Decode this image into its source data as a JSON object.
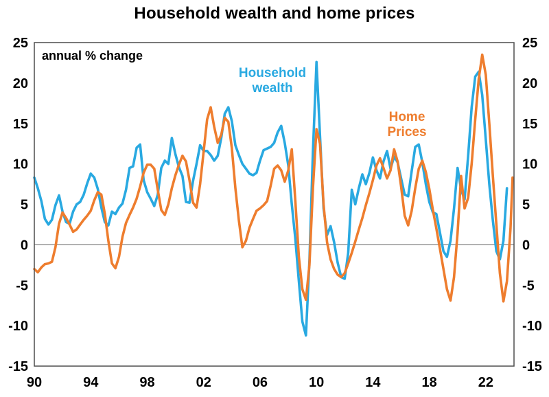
{
  "title": "Household wealth and home prices",
  "annotation": "annual % change",
  "legend": {
    "wealth": {
      "line1": "Household",
      "line2": "wealth"
    },
    "home": {
      "line1": "Home",
      "line2": "Prices"
    }
  },
  "colors": {
    "wealth": "#29A9E1",
    "home": "#EE7D2E",
    "zero_line": "#7F7F7F",
    "frame": "#4D4D4D",
    "text": "#000000",
    "background": "#FFFFFF"
  },
  "chart_data": {
    "type": "line",
    "title": "Household wealth and home prices",
    "subtitle": "annual % change",
    "xlabel": "",
    "ylabel": "annual % change",
    "x_range": [
      1990,
      2024
    ],
    "ylim": [
      -15,
      25
    ],
    "grid": "zero-line-only",
    "legend_position": "inline-annotations",
    "y_ticks": [
      25,
      20,
      15,
      10,
      5,
      0,
      -5,
      -10,
      -15
    ],
    "x_ticks": [
      {
        "label": "90",
        "year": 1990
      },
      {
        "label": "94",
        "year": 1994
      },
      {
        "label": "98",
        "year": 1998
      },
      {
        "label": "02",
        "year": 2002
      },
      {
        "label": "06",
        "year": 2006
      },
      {
        "label": "10",
        "year": 2010
      },
      {
        "label": "14",
        "year": 2014
      },
      {
        "label": "18",
        "year": 2018
      },
      {
        "label": "22",
        "year": 2022
      }
    ],
    "series": [
      {
        "name": "Household wealth",
        "color_key": "wealth",
        "points": [
          [
            1990,
            8.3
          ],
          [
            1990.25,
            7
          ],
          [
            1990.5,
            5.4
          ],
          [
            1990.75,
            3.2
          ],
          [
            1991,
            2.5
          ],
          [
            1991.25,
            3.1
          ],
          [
            1991.5,
            4.9
          ],
          [
            1991.75,
            6.1
          ],
          [
            1992,
            4.1
          ],
          [
            1992.25,
            2.8
          ],
          [
            1992.5,
            2.6
          ],
          [
            1992.75,
            4.1
          ],
          [
            1993,
            5
          ],
          [
            1993.25,
            5.3
          ],
          [
            1993.5,
            6.2
          ],
          [
            1993.75,
            7.6
          ],
          [
            1994,
            8.8
          ],
          [
            1994.25,
            8.3
          ],
          [
            1994.5,
            6.9
          ],
          [
            1994.75,
            4.6
          ],
          [
            1995,
            2.8
          ],
          [
            1995.25,
            2.4
          ],
          [
            1995.5,
            4.1
          ],
          [
            1995.75,
            3.8
          ],
          [
            1996,
            4.6
          ],
          [
            1996.25,
            5.1
          ],
          [
            1996.5,
            6.8
          ],
          [
            1996.75,
            9.5
          ],
          [
            1997,
            9.7
          ],
          [
            1997.25,
            12
          ],
          [
            1997.5,
            12.4
          ],
          [
            1997.75,
            8
          ],
          [
            1998,
            6.5
          ],
          [
            1998.25,
            5.7
          ],
          [
            1998.5,
            4.8
          ],
          [
            1998.75,
            6.2
          ],
          [
            1999,
            9.5
          ],
          [
            1999.25,
            10.4
          ],
          [
            1999.5,
            10
          ],
          [
            1999.75,
            13.2
          ],
          [
            2000,
            11.2
          ],
          [
            2000.25,
            9.6
          ],
          [
            2000.5,
            8.5
          ],
          [
            2000.75,
            5.3
          ],
          [
            2001,
            5.2
          ],
          [
            2001.25,
            7.9
          ],
          [
            2001.5,
            10
          ],
          [
            2001.75,
            12.3
          ],
          [
            2002,
            11.6
          ],
          [
            2002.25,
            11.6
          ],
          [
            2002.5,
            11.1
          ],
          [
            2002.75,
            10.4
          ],
          [
            2003,
            11
          ],
          [
            2003.25,
            13.2
          ],
          [
            2003.5,
            16.2
          ],
          [
            2003.75,
            17
          ],
          [
            2004,
            15.3
          ],
          [
            2004.25,
            12.3
          ],
          [
            2004.5,
            11.1
          ],
          [
            2004.75,
            10
          ],
          [
            2005,
            9.4
          ],
          [
            2005.25,
            8.8
          ],
          [
            2005.5,
            8.6
          ],
          [
            2005.75,
            8.9
          ],
          [
            2006,
            10.4
          ],
          [
            2006.25,
            11.7
          ],
          [
            2006.5,
            11.9
          ],
          [
            2006.75,
            12.1
          ],
          [
            2007,
            12.6
          ],
          [
            2007.25,
            13.9
          ],
          [
            2007.5,
            14.7
          ],
          [
            2007.75,
            12.6
          ],
          [
            2008,
            9.8
          ],
          [
            2008.25,
            5
          ],
          [
            2008.5,
            0.8
          ],
          [
            2008.75,
            -4.5
          ],
          [
            2009,
            -9.5
          ],
          [
            2009.25,
            -11.2
          ],
          [
            2009.5,
            -2
          ],
          [
            2009.75,
            11.5
          ],
          [
            2010,
            22.6
          ],
          [
            2010.25,
            13.5
          ],
          [
            2010.5,
            4.5
          ],
          [
            2010.75,
            1.2
          ],
          [
            2011,
            2.3
          ],
          [
            2011.25,
            0.3
          ],
          [
            2011.5,
            -2.2
          ],
          [
            2011.75,
            -4
          ],
          [
            2012,
            -4.2
          ],
          [
            2012.25,
            -1
          ],
          [
            2012.5,
            6.8
          ],
          [
            2012.75,
            5
          ],
          [
            2013,
            7
          ],
          [
            2013.25,
            8.7
          ],
          [
            2013.5,
            7.5
          ],
          [
            2013.75,
            8.9
          ],
          [
            2014,
            10.8
          ],
          [
            2014.25,
            9.2
          ],
          [
            2014.5,
            8.2
          ],
          [
            2014.75,
            10.3
          ],
          [
            2015,
            11.6
          ],
          [
            2015.25,
            9.4
          ],
          [
            2015.5,
            10.9
          ],
          [
            2015.75,
            10.2
          ],
          [
            2016,
            8.2
          ],
          [
            2016.25,
            6.2
          ],
          [
            2016.5,
            6
          ],
          [
            2016.75,
            9.1
          ],
          [
            2017,
            12.1
          ],
          [
            2017.25,
            12.4
          ],
          [
            2017.5,
            10.2
          ],
          [
            2017.75,
            7.5
          ],
          [
            2018,
            5.3
          ],
          [
            2018.25,
            4
          ],
          [
            2018.5,
            3.8
          ],
          [
            2018.75,
            1.5
          ],
          [
            2019,
            -0.8
          ],
          [
            2019.25,
            -1.5
          ],
          [
            2019.5,
            0.5
          ],
          [
            2019.75,
            4.5
          ],
          [
            2020,
            9.5
          ],
          [
            2020.25,
            6.8
          ],
          [
            2020.5,
            5.6
          ],
          [
            2020.75,
            11
          ],
          [
            2021,
            17
          ],
          [
            2021.25,
            20.8
          ],
          [
            2021.5,
            21.4
          ],
          [
            2021.75,
            18.5
          ],
          [
            2022,
            13
          ],
          [
            2022.25,
            7.5
          ],
          [
            2022.5,
            3
          ],
          [
            2022.75,
            -0.8
          ],
          [
            2023,
            -1.8
          ],
          [
            2023.25,
            0.5
          ],
          [
            2023.5,
            7
          ]
        ]
      },
      {
        "name": "Home Prices",
        "color_key": "home",
        "points": [
          [
            1990,
            -3
          ],
          [
            1990.25,
            -3.4
          ],
          [
            1990.5,
            -2.8
          ],
          [
            1990.75,
            -2.4
          ],
          [
            1991,
            -2.3
          ],
          [
            1991.25,
            -2.1
          ],
          [
            1991.5,
            -0.3
          ],
          [
            1991.75,
            2.6
          ],
          [
            1992,
            4
          ],
          [
            1992.25,
            3.3
          ],
          [
            1992.5,
            2.5
          ],
          [
            1992.75,
            1.6
          ],
          [
            1993,
            1.9
          ],
          [
            1993.25,
            2.5
          ],
          [
            1993.5,
            3.1
          ],
          [
            1993.75,
            3.6
          ],
          [
            1994,
            4.2
          ],
          [
            1994.25,
            5.5
          ],
          [
            1994.5,
            6.5
          ],
          [
            1994.75,
            6.2
          ],
          [
            1995,
            3.8
          ],
          [
            1995.25,
            0.5
          ],
          [
            1995.5,
            -2.3
          ],
          [
            1995.75,
            -2.9
          ],
          [
            1996,
            -1.5
          ],
          [
            1996.25,
            1
          ],
          [
            1996.5,
            2.7
          ],
          [
            1996.75,
            3.7
          ],
          [
            1997,
            4.6
          ],
          [
            1997.25,
            5.7
          ],
          [
            1997.5,
            7.2
          ],
          [
            1997.75,
            8.9
          ],
          [
            1998,
            9.9
          ],
          [
            1998.25,
            9.9
          ],
          [
            1998.5,
            9.4
          ],
          [
            1998.75,
            6.8
          ],
          [
            1999,
            4.3
          ],
          [
            1999.25,
            3.7
          ],
          [
            1999.5,
            5
          ],
          [
            1999.75,
            7
          ],
          [
            2000,
            8.6
          ],
          [
            2000.25,
            9.9
          ],
          [
            2000.5,
            11
          ],
          [
            2000.75,
            10.3
          ],
          [
            2001,
            8
          ],
          [
            2001.25,
            5.2
          ],
          [
            2001.5,
            4.6
          ],
          [
            2001.75,
            7.5
          ],
          [
            2002,
            11.5
          ],
          [
            2002.25,
            15.5
          ],
          [
            2002.5,
            17
          ],
          [
            2002.75,
            14.6
          ],
          [
            2003,
            12.6
          ],
          [
            2003.25,
            13.6
          ],
          [
            2003.5,
            15.7
          ],
          [
            2003.75,
            15.2
          ],
          [
            2004,
            12
          ],
          [
            2004.25,
            7
          ],
          [
            2004.5,
            3
          ],
          [
            2004.75,
            -0.3
          ],
          [
            2005,
            0.5
          ],
          [
            2005.25,
            2.1
          ],
          [
            2005.5,
            3.2
          ],
          [
            2005.75,
            4.2
          ],
          [
            2006,
            4.5
          ],
          [
            2006.25,
            4.9
          ],
          [
            2006.5,
            5.4
          ],
          [
            2006.75,
            7.3
          ],
          [
            2007,
            9.4
          ],
          [
            2007.25,
            9.8
          ],
          [
            2007.5,
            9.2
          ],
          [
            2007.75,
            7.8
          ],
          [
            2008,
            9.2
          ],
          [
            2008.25,
            11.8
          ],
          [
            2008.5,
            5.5
          ],
          [
            2008.75,
            -1.5
          ],
          [
            2009,
            -5.5
          ],
          [
            2009.25,
            -6.8
          ],
          [
            2009.5,
            -2.5
          ],
          [
            2009.75,
            7
          ],
          [
            2010,
            14.3
          ],
          [
            2010.25,
            12.5
          ],
          [
            2010.5,
            5
          ],
          [
            2010.75,
            0.3
          ],
          [
            2011,
            -1.8
          ],
          [
            2011.25,
            -3
          ],
          [
            2011.5,
            -3.7
          ],
          [
            2011.75,
            -4
          ],
          [
            2012,
            -3.5
          ],
          [
            2012.25,
            -2.3
          ],
          [
            2012.5,
            -1
          ],
          [
            2012.75,
            0.4
          ],
          [
            2013,
            1.9
          ],
          [
            2013.25,
            3.3
          ],
          [
            2013.5,
            4.9
          ],
          [
            2013.75,
            6.4
          ],
          [
            2014,
            8
          ],
          [
            2014.25,
            9.8
          ],
          [
            2014.5,
            10.7
          ],
          [
            2014.75,
            9.5
          ],
          [
            2015,
            8.2
          ],
          [
            2015.25,
            9.2
          ],
          [
            2015.5,
            11.8
          ],
          [
            2015.75,
            10.3
          ],
          [
            2016,
            7.2
          ],
          [
            2016.25,
            3.6
          ],
          [
            2016.5,
            2.4
          ],
          [
            2016.75,
            4.2
          ],
          [
            2017,
            7
          ],
          [
            2017.25,
            9.4
          ],
          [
            2017.5,
            10.4
          ],
          [
            2017.75,
            9
          ],
          [
            2018,
            6.9
          ],
          [
            2018.25,
            4.3
          ],
          [
            2018.5,
            2
          ],
          [
            2018.75,
            -0.5
          ],
          [
            2019,
            -3
          ],
          [
            2019.25,
            -5.5
          ],
          [
            2019.5,
            -6.9
          ],
          [
            2019.75,
            -4
          ],
          [
            2020,
            1.5
          ],
          [
            2020.25,
            8.5
          ],
          [
            2020.5,
            4.5
          ],
          [
            2020.75,
            5.8
          ],
          [
            2021,
            10
          ],
          [
            2021.25,
            15.5
          ],
          [
            2021.5,
            20.5
          ],
          [
            2021.75,
            23.5
          ],
          [
            2022,
            21
          ],
          [
            2022.25,
            15
          ],
          [
            2022.5,
            8.5
          ],
          [
            2022.75,
            2.5
          ],
          [
            2023,
            -3.5
          ],
          [
            2023.25,
            -7
          ],
          [
            2023.5,
            -4.5
          ],
          [
            2023.75,
            2
          ],
          [
            2023.9,
            8.3
          ]
        ]
      }
    ]
  }
}
